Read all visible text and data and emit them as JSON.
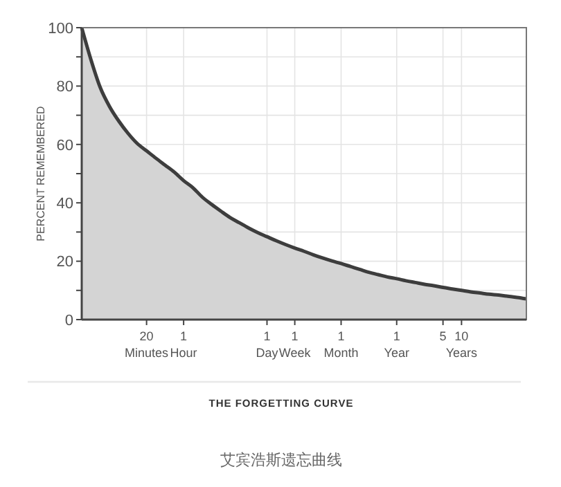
{
  "chart_data": {
    "type": "area",
    "title": "THE FORGETTING CURVE",
    "ylabel": "PERCENT REMEMBERED",
    "annotations": [
      "艾宾浩斯遗忘曲线"
    ],
    "categories": [
      null,
      null,
      null,
      null,
      null,
      null,
      null,
      "20 Minutes",
      null,
      null,
      null,
      "1 Hour",
      null,
      null,
      null,
      null,
      null,
      null,
      null,
      null,
      "1 Day",
      null,
      null,
      "1 Week",
      null,
      null,
      null,
      null,
      "1 Month",
      null,
      null,
      null,
      null,
      null,
      "1 Year",
      null,
      null,
      null,
      null,
      "5",
      null,
      "10 Years",
      null,
      null,
      null,
      null,
      null,
      null,
      null
    ],
    "series": [
      {
        "color": "#d4d4d4",
        "values": [
          100,
          89,
          79.5,
          73,
          68,
          63.8,
          60.3,
          57.8,
          55.3,
          52.9,
          50.5,
          47.6,
          45.2,
          42,
          39.5,
          37.2,
          35,
          33.2,
          31.4,
          29.8,
          28.4,
          27,
          25.7,
          24.5,
          23.4,
          22.2,
          21.1,
          20.1,
          19.2,
          18.2,
          17.2,
          16.2,
          15.4,
          14.6,
          14,
          13.3,
          12.7,
          12.1,
          11.6,
          11,
          10.5,
          10,
          9.5,
          9.1,
          8.7,
          8.4,
          8,
          7.6,
          7.1
        ]
      }
    ],
    "ylim": [
      0,
      100
    ],
    "yticks": [
      0,
      {
        "value": 10,
        "label": null
      },
      20,
      {
        "value": 30,
        "label": null
      },
      40,
      {
        "value": 50,
        "label": null
      },
      60,
      {
        "value": 70,
        "label": null
      },
      80,
      {
        "value": 90,
        "label": null
      },
      100
    ],
    "grid": true
  }
}
